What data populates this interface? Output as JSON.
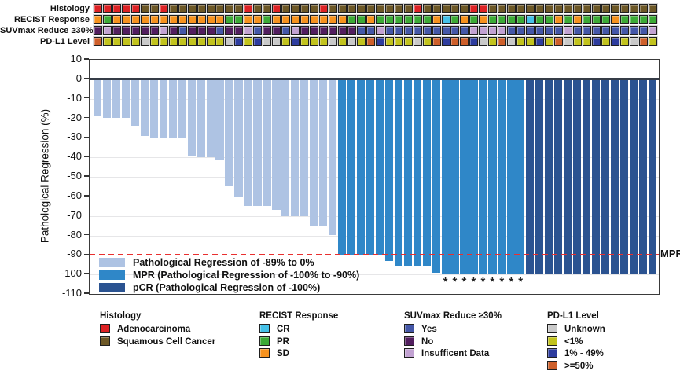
{
  "strip": {
    "rows": [
      {
        "label": "Histology",
        "values": [
          "adeno",
          "adeno",
          "adeno",
          "adeno",
          "adeno",
          "scc",
          "scc",
          "adeno",
          "scc",
          "scc",
          "scc",
          "scc",
          "scc",
          "scc",
          "scc",
          "scc",
          "adeno",
          "scc",
          "scc",
          "adeno",
          "scc",
          "scc",
          "scc",
          "scc",
          "adeno",
          "scc",
          "scc",
          "scc",
          "scc",
          "scc",
          "scc",
          "scc",
          "scc",
          "scc",
          "adeno",
          "scc",
          "scc",
          "scc",
          "scc",
          "scc",
          "adeno",
          "adeno",
          "scc",
          "scc",
          "scc",
          "scc",
          "scc",
          "scc",
          "scc",
          "scc",
          "scc",
          "scc",
          "scc",
          "scc",
          "scc",
          "scc",
          "scc",
          "scc",
          "scc",
          "scc"
        ]
      },
      {
        "label": "RECIST Response",
        "values": [
          "sd",
          "pr",
          "sd",
          "sd",
          "sd",
          "sd",
          "sd",
          "sd",
          "sd",
          "sd",
          "sd",
          "sd",
          "sd",
          "sd",
          "pr",
          "pr",
          "sd",
          "sd",
          "pr",
          "sd",
          "sd",
          "sd",
          "sd",
          "sd",
          "sd",
          "sd",
          "sd",
          "pr",
          "pr",
          "sd",
          "pr",
          "pr",
          "pr",
          "pr",
          "pr",
          "pr",
          "sd",
          "cr",
          "pr",
          "sd",
          "pr",
          "sd",
          "pr",
          "pr",
          "pr",
          "pr",
          "cr",
          "pr",
          "pr",
          "sd",
          "pr",
          "sd",
          "pr",
          "pr",
          "pr",
          "sd",
          "pr",
          "pr",
          "pr",
          "pr"
        ]
      },
      {
        "label": "SUVmax Reduce ≥30%",
        "values": [
          "no",
          "insufficient",
          "no",
          "no",
          "no",
          "no",
          "no",
          "insufficient",
          "no",
          "yes",
          "no",
          "no",
          "no",
          "yes",
          "no",
          "no",
          "insufficient",
          "yes",
          "no",
          "no",
          "yes",
          "insufficient",
          "no",
          "no",
          "no",
          "no",
          "no",
          "no",
          "yes",
          "yes",
          "insufficient",
          "yes",
          "yes",
          "yes",
          "yes",
          "yes",
          "yes",
          "yes",
          "yes",
          "yes",
          "insufficient",
          "insufficient",
          "insufficient",
          "insufficient",
          "yes",
          "yes",
          "yes",
          "yes",
          "yes",
          "yes",
          "insufficient",
          "yes",
          "yes",
          "yes",
          "yes",
          "yes",
          "yes",
          "yes",
          "yes",
          "insufficient"
        ]
      },
      {
        "label": "PD-L1 Level",
        "values": [
          "ge50",
          "lt1",
          "lt1",
          "lt1",
          "lt1",
          "unknown",
          "lt1",
          "lt1",
          "lt1",
          "lt1",
          "lt1",
          "lt1",
          "lt1",
          "lt1",
          "unknown",
          "p1to49",
          "lt1",
          "p1to49",
          "unknown",
          "unknown",
          "lt1",
          "p1to49",
          "lt1",
          "lt1",
          "lt1",
          "unknown",
          "lt1",
          "unknown",
          "lt1",
          "ge50",
          "p1to49",
          "lt1",
          "lt1",
          "lt1",
          "unknown",
          "lt1",
          "ge50",
          "p1to49",
          "ge50",
          "ge50",
          "p1to49",
          "unknown",
          "lt1",
          "ge50",
          "unknown",
          "lt1",
          "lt1",
          "p1to49",
          "lt1",
          "ge50",
          "unknown",
          "lt1",
          "lt1",
          "p1to49",
          "lt1",
          "p1to49",
          "lt1",
          "unknown",
          "ge50",
          "lt1"
        ]
      }
    ],
    "palette": {
      "adeno": "#dd2224",
      "scc": "#6d5826",
      "cr": "#45c1e8",
      "pr": "#3caa36",
      "sd": "#f6921e",
      "yes": "#4457a8",
      "no": "#521e5f",
      "insufficient": "#c2a2d2",
      "unknown": "#c9c9c9",
      "lt1": "#c2c31d",
      "p1to49": "#2d3c9e",
      "ge50": "#ce5f2a"
    }
  },
  "chart_data": {
    "type": "bar",
    "title": "",
    "xlabel": "",
    "ylabel": "Pathological Regression (%)",
    "ylim": [
      10,
      -110
    ],
    "yticks": [
      10,
      0,
      -10,
      -20,
      -30,
      -40,
      -50,
      -60,
      -70,
      -80,
      -90,
      -100,
      -110
    ],
    "grid": true,
    "values": [
      -19,
      -20,
      -20,
      -20,
      -24,
      -29,
      -30,
      -30,
      -30,
      -30,
      -39,
      -40,
      -40,
      -41,
      -55,
      -60,
      -65,
      -65,
      -65,
      -67,
      -70,
      -70,
      -70,
      -75,
      -75,
      -80,
      -90,
      -90,
      -90,
      -90,
      -90,
      -93,
      -96,
      -96,
      -96,
      -96,
      -99,
      -100,
      -100,
      -100,
      -100,
      -100,
      -100,
      -100,
      -100,
      -100,
      -100,
      -100,
      -100,
      -100,
      -100,
      -100,
      -100,
      -100,
      -100,
      -100,
      -100,
      -100,
      -100,
      -100
    ],
    "group_counts": {
      "partial": 26,
      "mpr": 20,
      "pcr": 14
    },
    "colors": {
      "partial": "#aec3e3",
      "mpr": "#2f87c8",
      "pcr": "#2b5391"
    },
    "asterisk_bar_indices": [
      37,
      38,
      39,
      40,
      41,
      42,
      43,
      44,
      45
    ],
    "asterisk_symbol": "*",
    "reference_line": {
      "value": -90,
      "label": "MPR",
      "color": "#e92f2f"
    },
    "legend": [
      {
        "key": "partial",
        "label": "Pathological Regression of -89% to 0%"
      },
      {
        "key": "mpr",
        "label": "MPR (Pathological Regression of -100% to -90%)"
      },
      {
        "key": "pcr",
        "label": "pCR (Pathological Regression of -100%)"
      }
    ],
    "legend_position": "lower-left"
  },
  "bottom_legend": {
    "sections": [
      {
        "title": "Histology",
        "items": [
          {
            "label": "Adenocarcinoma",
            "color_key": "adeno"
          },
          {
            "label": "Squamous Cell Cancer",
            "color_key": "scc"
          }
        ]
      },
      {
        "title": "RECIST Response",
        "items": [
          {
            "label": "CR",
            "color_key": "cr"
          },
          {
            "label": "PR",
            "color_key": "pr"
          },
          {
            "label": "SD",
            "color_key": "sd"
          }
        ]
      },
      {
        "title": "SUVmax Reduce ≥30%",
        "items": [
          {
            "label": "Yes",
            "color_key": "yes"
          },
          {
            "label": "No",
            "color_key": "no"
          },
          {
            "label": "Insufficent Data",
            "color_key": "insufficient"
          }
        ]
      },
      {
        "title": "PD-L1 Level",
        "items": [
          {
            "label": "Unknown",
            "color_key": "unknown"
          },
          {
            "label": "<1%",
            "color_key": "lt1"
          },
          {
            "label": "1% - 49%",
            "color_key": "p1to49"
          },
          {
            "label": ">=50%",
            "color_key": "ge50"
          }
        ]
      }
    ]
  }
}
